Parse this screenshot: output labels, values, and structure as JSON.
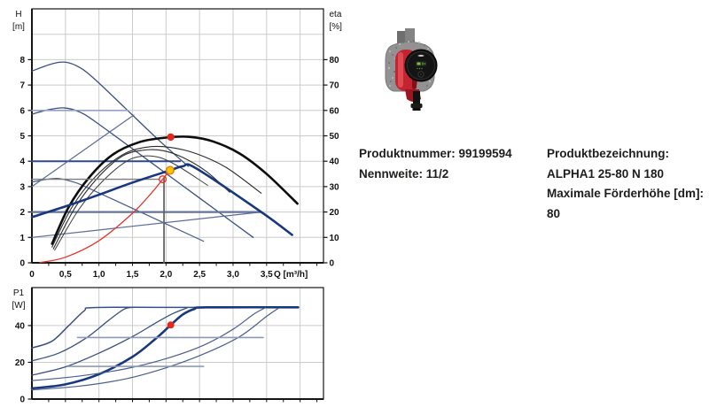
{
  "accent_colors": {
    "curve_navy": "#3a4f82",
    "curve_selected": "#17377e",
    "eta_black": "#0d0d0d",
    "system_red": "#e2352b",
    "marker_red": "#e8271c",
    "marker_yellow": "#ffc800",
    "marker_yellow_ring": "#ef7d00",
    "grid_gray": "#cbcbcb"
  },
  "info": {
    "left": [
      {
        "label": "Produktnummer:",
        "value": "99199594"
      },
      {
        "label": "Nennweite:",
        "value": "11/2"
      }
    ],
    "right": [
      {
        "label": "Produktbezeichnung:",
        "value": "ALPHA1 25-80 N 180"
      },
      {
        "label": "Maximale Förderhöhe [dm]:",
        "value": "80"
      }
    ]
  },
  "chart_data": [
    {
      "type": "line",
      "title": "Pump curve chart (H/Q with efficiency)",
      "xlabel": "Q [m³/h]",
      "ylabel_left": [
        "H",
        "[m]"
      ],
      "ylabel_right": [
        "eta",
        "[%]"
      ],
      "xlim": [
        0,
        4.35
      ],
      "ylim_left": [
        0,
        10
      ],
      "ylim_right": [
        0,
        100
      ],
      "x_grid": [
        0.5,
        1.0,
        1.5,
        2.0,
        2.5,
        3.0,
        3.5,
        4.0
      ],
      "y_grid": [
        1,
        2,
        3,
        4,
        5,
        6,
        7,
        8,
        9
      ],
      "x_ticks": {
        "values": [
          0,
          0.5,
          1.0,
          1.5,
          2.0,
          2.5,
          3.0,
          3.5
        ],
        "labels": [
          "0",
          "0,5",
          "1,0",
          "1,5",
          "2,0",
          "2,5",
          "3,0",
          "3,5"
        ]
      },
      "y_ticks_left": {
        "values": [
          0,
          1,
          2,
          3,
          4,
          5,
          6,
          7,
          8
        ],
        "labels": [
          "0",
          "1",
          "2",
          "3",
          "4",
          "5",
          "6",
          "7",
          "8"
        ]
      },
      "y_ticks_right": {
        "values": [
          0,
          1,
          2,
          3,
          4,
          5,
          6,
          7,
          8
        ],
        "labels": [
          "0",
          "10",
          "20",
          "30",
          "40",
          "50",
          "60",
          "70",
          "80"
        ]
      },
      "series": [
        {
          "name": "speed-curve-3",
          "color": "#3a4f82",
          "width": 1.3,
          "points": [
            [
              0,
              7.55
            ],
            [
              0.28,
              7.82
            ],
            [
              0.5,
              7.9
            ],
            [
              0.72,
              7.68
            ],
            [
              0.95,
              7.2
            ],
            [
              1.4,
              6.07
            ],
            [
              1.9,
              4.81
            ],
            [
              2.33,
              3.8
            ]
          ]
        },
        {
          "name": "speed-curve-2",
          "color": "#3a4f82",
          "width": 1.3,
          "points": [
            [
              0,
              5.85
            ],
            [
              0.25,
              6.03
            ],
            [
              0.48,
              6.1
            ],
            [
              0.7,
              5.95
            ],
            [
              0.95,
              5.55
            ],
            [
              1.7,
              4.1
            ],
            [
              2.5,
              2.55
            ],
            [
              3.3,
              1.0
            ]
          ]
        },
        {
          "name": "speed-curve-1",
          "color": "#465a8c",
          "width": 1.2,
          "points": [
            [
              0,
              3.18
            ],
            [
              0.2,
              3.28
            ],
            [
              0.4,
              3.32
            ],
            [
              0.62,
              3.18
            ],
            [
              0.82,
              2.97
            ],
            [
              1.7,
              1.9
            ],
            [
              2.56,
              0.85
            ]
          ]
        },
        {
          "name": "cp-curve-3",
          "color": "#93a1c4",
          "width": 1.6,
          "straight": true,
          "points": [
            [
              0,
              6.0
            ],
            [
              1.43,
              6.0
            ]
          ]
        },
        {
          "name": "cp-curve-2",
          "color": "#2d4a8f",
          "width": 2.0,
          "straight": true,
          "points": [
            [
              0,
              4.0
            ],
            [
              2.21,
              4.0
            ]
          ]
        },
        {
          "name": "cp-curve-1",
          "color": "#64739b",
          "width": 2.2,
          "straight": true,
          "points": [
            [
              0,
              2.0
            ],
            [
              3.42,
              2.0
            ]
          ]
        },
        {
          "name": "pp-curve-3",
          "color": "#5a6b9a",
          "width": 1.2,
          "straight": true,
          "points": [
            [
              0,
              3.0
            ],
            [
              1.52,
              5.82
            ]
          ]
        },
        {
          "name": "pp-curve-1",
          "color": "#5a6b9a",
          "width": 1.2,
          "straight": true,
          "points": [
            [
              0,
              1.0
            ],
            [
              3.42,
              2.0
            ]
          ]
        },
        {
          "name": "eta-curve-max",
          "color": "#0d0d0d",
          "width": 2.6,
          "points": [
            [
              0.3,
              0.75
            ],
            [
              0.55,
              2.2
            ],
            [
              0.85,
              3.35
            ],
            [
              1.2,
              4.25
            ],
            [
              1.6,
              4.75
            ],
            [
              2.0,
              4.93
            ],
            [
              2.35,
              4.96
            ],
            [
              2.7,
              4.78
            ],
            [
              3.1,
              4.3
            ],
            [
              3.5,
              3.5
            ],
            [
              3.96,
              2.33
            ]
          ]
        },
        {
          "name": "eta-curve-2",
          "color": "#2b2b2b",
          "width": 1.1,
          "points": [
            [
              0.3,
              0.62
            ],
            [
              0.6,
              2.2
            ],
            [
              0.95,
              3.4
            ],
            [
              1.35,
              4.25
            ],
            [
              1.7,
              4.55
            ],
            [
              2.05,
              4.55
            ],
            [
              2.45,
              4.3
            ],
            [
              2.9,
              3.75
            ],
            [
              3.42,
              2.74
            ]
          ]
        },
        {
          "name": "eta-curve-1",
          "color": "#2b2b2b",
          "width": 1.1,
          "points": [
            [
              0.32,
              0.55
            ],
            [
              0.65,
              2.2
            ],
            [
              1.0,
              3.4
            ],
            [
              1.35,
              4.2
            ],
            [
              1.65,
              4.43
            ],
            [
              1.95,
              4.42
            ],
            [
              2.25,
              4.15
            ],
            [
              2.6,
              3.6
            ],
            [
              2.95,
              2.78
            ]
          ]
        },
        {
          "name": "eta-curve-0",
          "color": "#3c3c3c",
          "width": 1.0,
          "points": [
            [
              0.34,
              0.5
            ],
            [
              0.7,
              2.1
            ],
            [
              1.05,
              3.2
            ],
            [
              1.4,
              3.98
            ],
            [
              1.65,
              4.2
            ],
            [
              1.9,
              4.15
            ],
            [
              2.15,
              3.85
            ],
            [
              2.45,
              3.35
            ],
            [
              2.62,
              3.05
            ]
          ]
        },
        {
          "name": "duty-line-horizontal",
          "color": "#7d7d7d",
          "width": 1.4,
          "straight": true,
          "points": [
            [
              0,
              3.29
            ],
            [
              1.9,
              3.29
            ]
          ]
        },
        {
          "name": "duty-line-vertical",
          "color": "#666666",
          "width": 1.8,
          "straight": true,
          "points": [
            [
              1.97,
              0
            ],
            [
              1.97,
              3.33
            ]
          ]
        },
        {
          "name": "selected-control-curve",
          "color": "#17377e",
          "width": 2.6,
          "points": [
            [
              0,
              1.8
            ],
            [
              0.5,
              2.22
            ],
            [
              1.0,
              2.68
            ],
            [
              1.5,
              3.16
            ],
            [
              2.06,
              3.64
            ],
            [
              2.25,
              3.8
            ],
            [
              2.45,
              3.72
            ],
            [
              3.42,
              2.0
            ],
            [
              3.88,
              1.1
            ]
          ]
        },
        {
          "name": "system-curve",
          "color": "#e2352b",
          "width": 1.3,
          "points": [
            [
              0.12,
              0.01
            ],
            [
              0.5,
              0.22
            ],
            [
              1.0,
              0.87
            ],
            [
              1.5,
              1.95
            ],
            [
              1.8,
              2.8
            ],
            [
              1.95,
              3.29
            ],
            [
              2.07,
              3.7
            ]
          ]
        }
      ],
      "markers": [
        {
          "name": "efficiency-point",
          "x": 2.07,
          "y": 4.95,
          "r": 4.2,
          "fill": "#e8271c"
        },
        {
          "name": "duty-point-requested",
          "x": 1.95,
          "y": 3.29,
          "r": 3.8,
          "fill": "none",
          "stroke": "#e2352b",
          "sw": 1.4
        },
        {
          "name": "operating-point",
          "x": 2.06,
          "y": 3.64,
          "r": 4.3,
          "fill": "#ffc800",
          "stroke": "#ef7d00",
          "sw": 1.5
        }
      ]
    },
    {
      "type": "line",
      "title": "Power consumption curve",
      "xlabel": "",
      "ylabel_left": [
        "P1",
        "[W]"
      ],
      "xlim": [
        0,
        4.35
      ],
      "ylim_left": [
        0,
        60
      ],
      "x_grid": [
        0.5,
        1.0,
        1.5,
        2.0,
        2.5,
        3.0,
        3.5,
        4.0
      ],
      "y_grid": [
        20,
        40
      ],
      "y_ticks_left": {
        "values": [
          0,
          20,
          40
        ],
        "labels": [
          "0",
          "20",
          "40"
        ]
      },
      "series": [
        {
          "name": "p1-speed-3",
          "color": "#3a4f82",
          "width": 1.5,
          "points": [
            [
              0,
              27.8
            ],
            [
              0.3,
              31.5
            ],
            [
              0.55,
              40
            ],
            [
              0.78,
              48
            ],
            [
              0.92,
              49.8
            ],
            [
              2.0,
              49.9
            ],
            [
              3.97,
              49.9
            ]
          ]
        },
        {
          "name": "p1-speed-2",
          "color": "#3a4f82",
          "width": 1.3,
          "points": [
            [
              0,
              20.8
            ],
            [
              0.4,
              25
            ],
            [
              0.8,
              33
            ],
            [
              1.15,
              43
            ],
            [
              1.38,
              49
            ],
            [
              1.52,
              49.9
            ]
          ]
        },
        {
          "name": "p1-mid",
          "color": "#3a4f82",
          "width": 1.3,
          "points": [
            [
              0,
              13
            ],
            [
              0.5,
              17.5
            ],
            [
              1.0,
              25
            ],
            [
              1.5,
              34
            ],
            [
              1.85,
              41.5
            ],
            [
              2.1,
              46.5
            ],
            [
              2.32,
              49.7
            ]
          ]
        },
        {
          "name": "p1-selected",
          "color": "#17377e",
          "width": 2.6,
          "points": [
            [
              0,
              5.8
            ],
            [
              0.5,
              8
            ],
            [
              1.0,
              13.5
            ],
            [
              1.5,
              23
            ],
            [
              1.85,
              33
            ],
            [
              2.07,
              40.3
            ],
            [
              2.25,
              46
            ],
            [
              2.42,
              49
            ],
            [
              2.6,
              49.9
            ],
            [
              3.97,
              49.9
            ]
          ]
        },
        {
          "name": "p1-slow-1",
          "color": "#4a5d8e",
          "width": 1.2,
          "points": [
            [
              0,
              10
            ],
            [
              0.7,
              12.5
            ],
            [
              1.4,
              16.5
            ],
            [
              2.0,
              22
            ],
            [
              2.56,
              29.3
            ],
            [
              3.0,
              38
            ],
            [
              3.3,
              46
            ],
            [
              3.48,
              49.7
            ]
          ]
        },
        {
          "name": "p1-slow-2",
          "color": "#4a5d8e",
          "width": 1.2,
          "points": [
            [
              0,
              5
            ],
            [
              0.7,
              7
            ],
            [
              1.4,
              11
            ],
            [
              2.0,
              17
            ],
            [
              2.56,
              24.5
            ],
            [
              3.1,
              34
            ],
            [
              3.5,
              45
            ],
            [
              3.68,
              49.5
            ]
          ]
        },
        {
          "name": "p1-cp-2",
          "color": "#8e99b8",
          "width": 1.6,
          "straight": true,
          "points": [
            [
              0.68,
              33.5
            ],
            [
              3.45,
              33.5
            ]
          ]
        },
        {
          "name": "p1-cp-1",
          "color": "#8e99b8",
          "width": 1.6,
          "straight": true,
          "points": [
            [
              0.55,
              17.8
            ],
            [
              2.56,
              17.8
            ]
          ]
        }
      ],
      "markers": [
        {
          "name": "p1-operating-point",
          "x": 2.07,
          "y": 40.3,
          "r": 4.0,
          "fill": "#e8271c"
        }
      ]
    }
  ]
}
